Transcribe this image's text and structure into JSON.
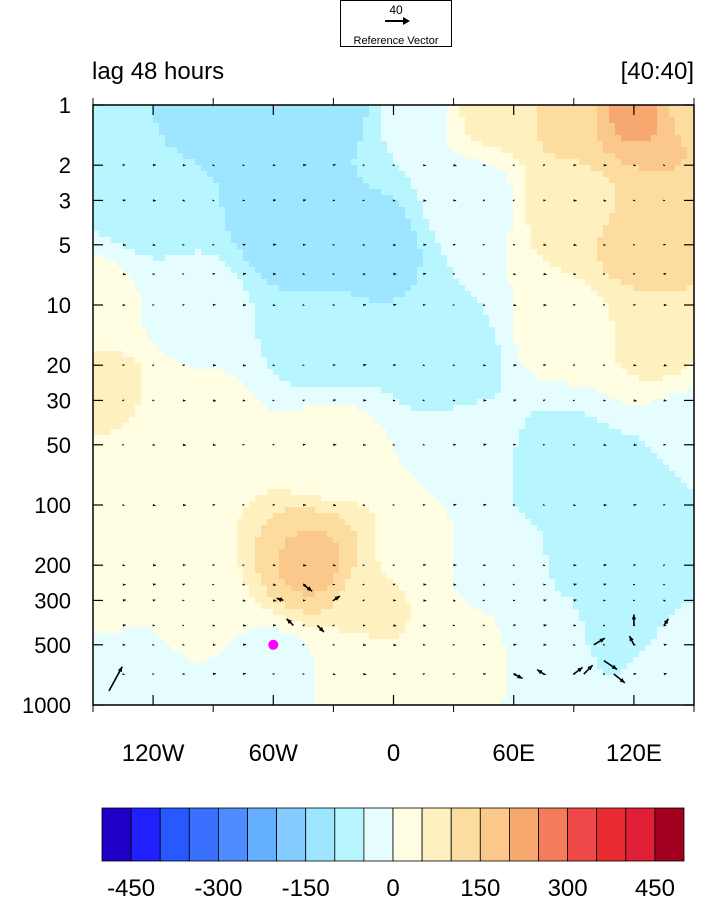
{
  "reference_vector": {
    "magnitude": "40",
    "label": "Reference Vector"
  },
  "titles": {
    "left": "lag 48 hours",
    "right": "[40:40]"
  },
  "colors": {
    "marker": "#ff00ff",
    "palette": [
      "#1e00c8",
      "#2020ff",
      "#2858ff",
      "#3a70ff",
      "#4e8cff",
      "#64b0ff",
      "#84ccff",
      "#9ee6ff",
      "#b8f6ff",
      "#e6fdff",
      "#fffde2",
      "#fff0bf",
      "#fddca0",
      "#fac88a",
      "#f6a86e",
      "#f47c5a",
      "#f04848",
      "#ea2c32",
      "#e01e34",
      "#a0001e"
    ]
  },
  "chart_data": {
    "type": "heatmap",
    "subtype": "height-longitude contour with wind vectors",
    "x_ticks": [
      {
        "value": -120,
        "label": "120W"
      },
      {
        "value": -60,
        "label": "60W"
      },
      {
        "value": 0,
        "label": "0"
      },
      {
        "value": 60,
        "label": "60E"
      },
      {
        "value": 120,
        "label": "120E"
      }
    ],
    "xlim": [
      -150,
      150
    ],
    "y_ticks": [
      {
        "value": 1,
        "label": "1"
      },
      {
        "value": 2,
        "label": "2"
      },
      {
        "value": 3,
        "label": "3"
      },
      {
        "value": 5,
        "label": "5"
      },
      {
        "value": 10,
        "label": "10"
      },
      {
        "value": 20,
        "label": "20"
      },
      {
        "value": 30,
        "label": "30"
      },
      {
        "value": 50,
        "label": "50"
      },
      {
        "value": 100,
        "label": "100"
      },
      {
        "value": 200,
        "label": "200"
      },
      {
        "value": 300,
        "label": "300"
      },
      {
        "value": 500,
        "label": "500"
      },
      {
        "value": 1000,
        "label": "1000"
      }
    ],
    "ylim": [
      1,
      1000
    ],
    "y_scale": "log",
    "y_inverted": true,
    "colorbar": {
      "levels": [
        -500,
        -450,
        -400,
        -350,
        -300,
        -250,
        -200,
        -150,
        -100,
        -50,
        0,
        50,
        100,
        150,
        200,
        250,
        300,
        350,
        400,
        450,
        500
      ],
      "tick_labels": [
        "-450",
        "-300",
        "-150",
        "0",
        "150",
        "300",
        "450"
      ],
      "tick_values": [
        -450,
        -300,
        -150,
        0,
        150,
        300,
        450
      ]
    },
    "field": [
      {
        "lon": -150,
        "lev": 1,
        "value": -80
      },
      {
        "lon": -90,
        "lev": 1,
        "value": -120
      },
      {
        "lon": -30,
        "lev": 1,
        "value": -120
      },
      {
        "lon": 10,
        "lev": 1,
        "value": -30
      },
      {
        "lon": 50,
        "lev": 1,
        "value": 70
      },
      {
        "lon": 90,
        "lev": 1,
        "value": 130
      },
      {
        "lon": 120,
        "lev": 1,
        "value": 220
      },
      {
        "lon": 150,
        "lev": 1,
        "value": 140
      },
      {
        "lon": -120,
        "lev": 3,
        "value": -90
      },
      {
        "lon": -50,
        "lev": 4,
        "value": -140
      },
      {
        "lon": -10,
        "lev": 5,
        "value": -120
      },
      {
        "lon": 40,
        "lev": 3,
        "value": -20
      },
      {
        "lon": 90,
        "lev": 3,
        "value": 90
      },
      {
        "lon": 130,
        "lev": 5,
        "value": 130
      },
      {
        "lon": -150,
        "lev": 10,
        "value": 20
      },
      {
        "lon": -100,
        "lev": 10,
        "value": -30
      },
      {
        "lon": -30,
        "lev": 15,
        "value": -90
      },
      {
        "lon": 30,
        "lev": 20,
        "value": -90
      },
      {
        "lon": 80,
        "lev": 15,
        "value": 10
      },
      {
        "lon": 130,
        "lev": 15,
        "value": 60
      },
      {
        "lon": -145,
        "lev": 25,
        "value": 60
      },
      {
        "lon": -100,
        "lev": 40,
        "value": 20
      },
      {
        "lon": -30,
        "lev": 50,
        "value": 15
      },
      {
        "lon": 40,
        "lev": 50,
        "value": -10
      },
      {
        "lon": 80,
        "lev": 60,
        "value": -80
      },
      {
        "lon": 120,
        "lev": 100,
        "value": -90
      },
      {
        "lon": 150,
        "lev": 50,
        "value": -40
      },
      {
        "lon": -40,
        "lev": 200,
        "value": 160
      },
      {
        "lon": -10,
        "lev": 300,
        "value": 70
      },
      {
        "lon": -140,
        "lev": 300,
        "value": 10
      },
      {
        "lon": -100,
        "lev": 300,
        "value": 25
      },
      {
        "lon": -135,
        "lev": 700,
        "value": -40
      },
      {
        "lon": -60,
        "lev": 700,
        "value": -30
      },
      {
        "lon": -20,
        "lev": 700,
        "value": 20
      },
      {
        "lon": 30,
        "lev": 500,
        "value": 30
      },
      {
        "lon": 50,
        "lev": 200,
        "value": -40
      },
      {
        "lon": 80,
        "lev": 500,
        "value": -20
      },
      {
        "lon": 110,
        "lev": 400,
        "value": -70
      },
      {
        "lon": 140,
        "lev": 700,
        "value": -30
      },
      {
        "lon": -120,
        "lev": 100,
        "value": 20
      },
      {
        "lon": 10,
        "lev": 200,
        "value": 30
      },
      {
        "lon": 100,
        "lev": 200,
        "value": -60
      }
    ],
    "marker_point": {
      "lon": -60,
      "lev": 500
    },
    "vectors": {
      "lons": [
        -135,
        -120,
        -105,
        -90,
        -75,
        -60,
        -45,
        -30,
        -15,
        0,
        15,
        30,
        45,
        60,
        75,
        90,
        105,
        120,
        135
      ],
      "levels": [
        2,
        3,
        5,
        7,
        10,
        20,
        30,
        50,
        100,
        200,
        250,
        300,
        400,
        500,
        700
      ],
      "notable": [
        {
          "lon": -142,
          "lev": 850,
          "u": 6,
          "v": 11
        },
        {
          "lon": -45,
          "lev": 250,
          "u": 4,
          "v": -3
        },
        {
          "lon": -38,
          "lev": 400,
          "u": 3,
          "v": -3
        },
        {
          "lon": -50,
          "lev": 400,
          "u": -3,
          "v": 3
        },
        {
          "lon": -30,
          "lev": 300,
          "u": 3,
          "v": 2
        },
        {
          "lon": -55,
          "lev": 300,
          "u": -3,
          "v": 1
        },
        {
          "lon": 60,
          "lev": 700,
          "u": 4,
          "v": -2
        },
        {
          "lon": 75,
          "lev": 700,
          "u": -3,
          "v": 2
        },
        {
          "lon": 90,
          "lev": 700,
          "u": 4,
          "v": 3
        },
        {
          "lon": 100,
          "lev": 500,
          "u": 5,
          "v": 3
        },
        {
          "lon": 105,
          "lev": 600,
          "u": 6,
          "v": -4
        },
        {
          "lon": 110,
          "lev": 700,
          "u": 5,
          "v": -4
        },
        {
          "lon": 120,
          "lev": 400,
          "u": 0,
          "v": 5
        },
        {
          "lon": 120,
          "lev": 500,
          "u": -2,
          "v": 4
        },
        {
          "lon": 95,
          "lev": 700,
          "u": 4,
          "v": 4
        },
        {
          "lon": 135,
          "lev": 400,
          "u": 2,
          "v": 3
        }
      ]
    },
    "grid": false,
    "legend_placement": "bottom"
  }
}
